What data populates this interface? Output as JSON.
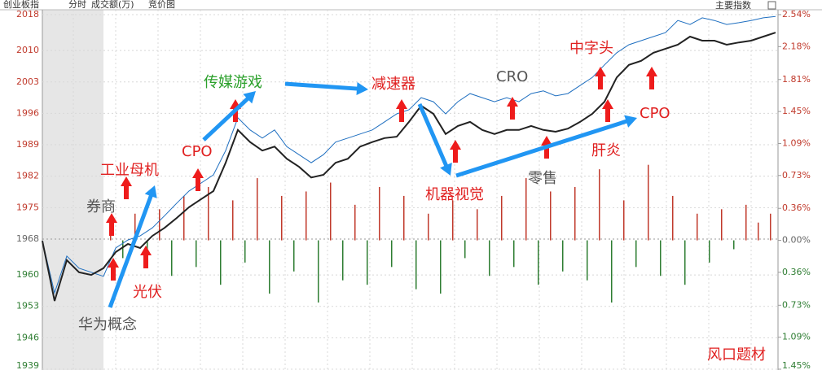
{
  "header": {
    "name": "创业板指",
    "mode": "分时",
    "volume_label": "成交额(万)",
    "auction": "竞价图",
    "tab": "主要指数"
  },
  "chart_data": {
    "type": "line",
    "ylim": [
      1939,
      2018
    ],
    "yticks": [
      2018,
      2010,
      2003,
      1996,
      1989,
      1982,
      1975,
      1968,
      1960,
      1953,
      1946,
      1939
    ],
    "y2lim": [
      -1.45,
      2.54
    ],
    "y2ticks": [
      {
        "value": 2.54,
        "label": "2.54%"
      },
      {
        "value": 2.18,
        "label": "2.18%"
      },
      {
        "value": 1.81,
        "label": "1.81%"
      },
      {
        "value": 1.45,
        "label": "1.45%"
      },
      {
        "value": 1.09,
        "label": "1.09%"
      },
      {
        "value": 0.73,
        "label": "0.73%"
      },
      {
        "value": 0.36,
        "label": "0.36%"
      },
      {
        "value": 0,
        "label": "0.00%"
      },
      {
        "value": -0.36,
        "label": "0.36%"
      },
      {
        "value": -0.73,
        "label": "0.73%"
      },
      {
        "value": -1.09,
        "label": "1.09%"
      },
      {
        "value": -1.45,
        "label": "1.45%"
      }
    ],
    "grid": true,
    "series": [
      {
        "color": "#1f6fc0",
        "values": [
          1967.6,
          1956.0,
          1964.2,
          1961.5,
          1960.6,
          1959.7,
          1966.0,
          1967.8,
          1968.7,
          1970.5,
          1973.2,
          1976.0,
          1978.7,
          1980.5,
          1982.3,
          1987.7,
          1995.0,
          1992.3,
          1990.5,
          1992.3,
          1988.6,
          1986.8,
          1985.0,
          1986.8,
          1989.6,
          1990.5,
          1991.4,
          1992.3,
          1994.1,
          1995.9,
          1996.8,
          1999.5,
          1998.6,
          1995.9,
          1998.6,
          2000.4,
          1999.5,
          1998.6,
          1999.5,
          1998.6,
          2000.4,
          2001.0,
          1999.9,
          2000.4,
          2002.2,
          2004.0,
          2006.8,
          2009.5,
          2011.3,
          2012.2,
          2013.1,
          2014.0,
          2016.7,
          2015.8,
          2017.3,
          2016.7,
          2015.8,
          2016.2,
          2016.7,
          2017.3,
          2017.6
        ]
      },
      {
        "color": "#222222",
        "values": [
          1967.6,
          1954.2,
          1963.3,
          1960.6,
          1960.0,
          1961.5,
          1965.1,
          1966.9,
          1966.0,
          1968.7,
          1970.5,
          1972.7,
          1975.1,
          1976.9,
          1978.7,
          1985.0,
          1992.3,
          1989.6,
          1987.7,
          1988.6,
          1985.9,
          1984.1,
          1981.7,
          1982.3,
          1985.0,
          1985.9,
          1988.6,
          1989.6,
          1990.5,
          1990.8,
          1994.1,
          1997.7,
          1995.9,
          1991.4,
          1993.2,
          1994.1,
          1992.3,
          1991.4,
          1992.3,
          1992.3,
          1993.2,
          1992.3,
          1991.9,
          1992.6,
          1994.1,
          1995.9,
          1998.6,
          2004.0,
          2006.8,
          2007.7,
          2009.5,
          2010.4,
          2011.3,
          2013.1,
          2012.2,
          2012.2,
          2011.3,
          2011.8,
          2012.2,
          2013.1,
          2014.0
        ]
      },
      {
        "axis": "y2",
        "up_color": "#c0392b",
        "down_color": "#2e7d32",
        "values": [
          0.25,
          -0.2,
          0.3,
          -0.1,
          0.35,
          -0.4,
          0.5,
          -0.3,
          0.6,
          -0.5,
          0.45,
          -0.25,
          0.7,
          -0.6,
          0.5,
          -0.35,
          0.55,
          -0.7,
          0.65,
          -0.45,
          0.4,
          -0.5,
          0.6,
          -0.3,
          0.5,
          -0.55,
          0.3,
          -0.6,
          0.45,
          -0.2,
          0.35,
          -0.4,
          0.5,
          -0.3,
          0.7,
          -0.5,
          0.55,
          -0.35,
          0.6,
          -0.45,
          0.8,
          -0.7,
          0.45,
          -0.3,
          0.85,
          -0.4,
          0.5,
          -0.5,
          0.3,
          -0.25,
          0.35,
          -0.1,
          0.4,
          0.2,
          0.3
        ]
      }
    ],
    "annotations": [
      {
        "text": "券商",
        "color": "#555555"
      },
      {
        "text": "工业母机",
        "color": "#e02020"
      },
      {
        "text": "CPO",
        "color": "#e02020"
      },
      {
        "text": "传媒游戏",
        "color": "#2aa02a"
      },
      {
        "text": "减速器",
        "color": "#e02020"
      },
      {
        "text": "CRO",
        "color": "#555555"
      },
      {
        "text": "中字头",
        "color": "#e02020"
      },
      {
        "text": "CPO",
        "color": "#e02020"
      },
      {
        "text": "肝炎",
        "color": "#e02020"
      },
      {
        "text": "零售",
        "color": "#555555"
      },
      {
        "text": "机器视觉",
        "color": "#e02020"
      },
      {
        "text": "光伏",
        "color": "#e02020"
      },
      {
        "text": "华为概念",
        "color": "#555555"
      },
      {
        "text": "风口题材",
        "color": "#e02020"
      }
    ]
  }
}
